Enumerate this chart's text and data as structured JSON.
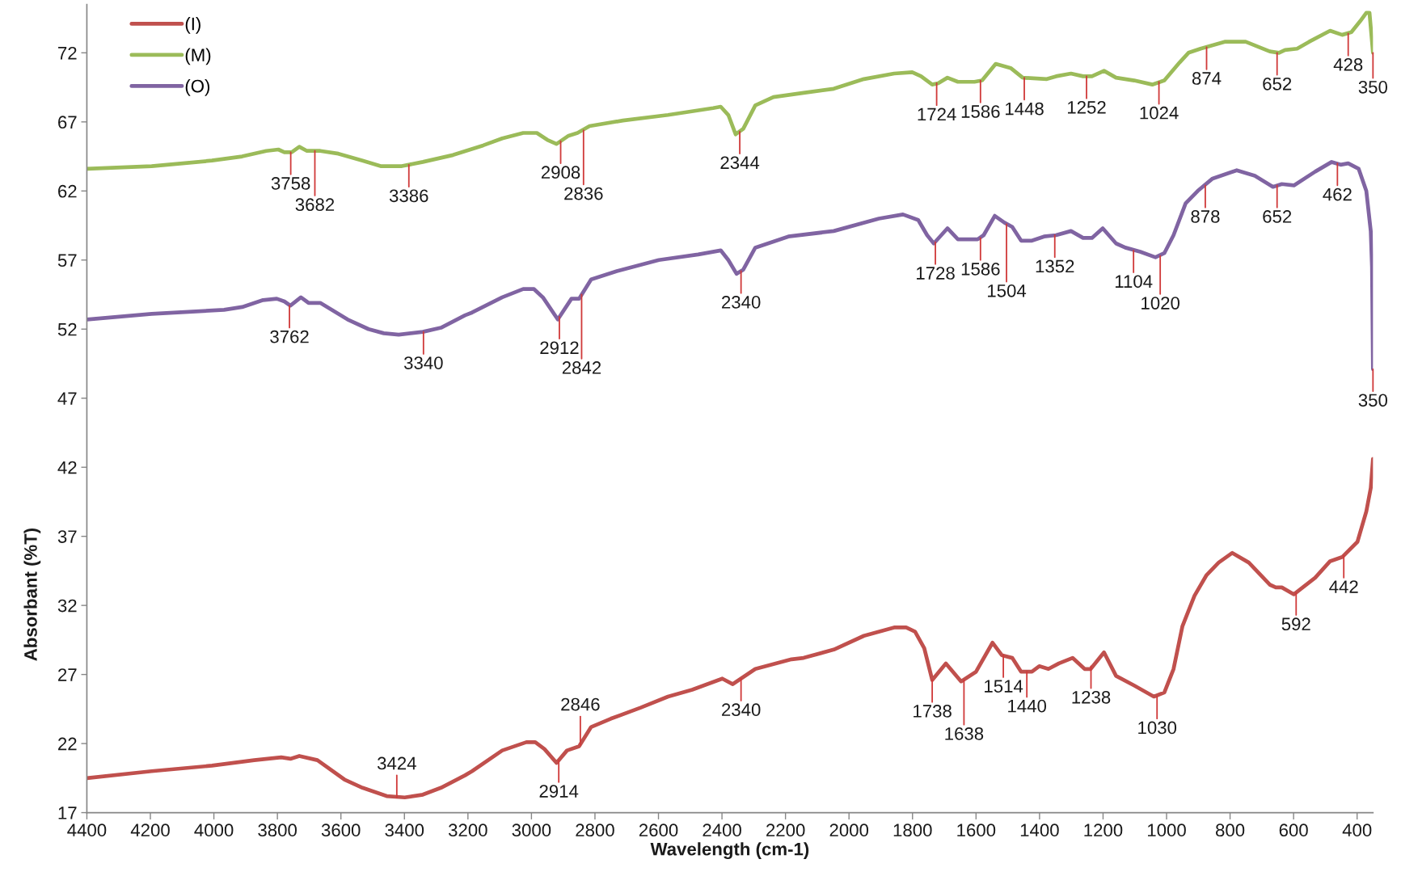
{
  "chart_data": {
    "type": "line",
    "xlabel": "Wavelength (cm-1)",
    "ylabel": "Absorbant (%T)",
    "xlim": [
      4400,
      350
    ],
    "xticks": [
      4400,
      4200,
      4000,
      3800,
      3600,
      3400,
      3200,
      3000,
      2800,
      2600,
      2400,
      2200,
      2000,
      1800,
      1600,
      1400,
      1200,
      1000,
      800,
      600,
      400
    ],
    "ylim": [
      17,
      75.5
    ],
    "yticks": [
      17,
      22,
      27,
      32,
      37,
      42,
      47,
      52,
      57,
      62,
      67,
      72
    ],
    "legend": "top left",
    "series": [
      {
        "name": "(I)",
        "color": "#c0504d",
        "x": [
          4400,
          4196,
          4006,
          3873,
          3788,
          3759,
          3731,
          3674,
          3589,
          3532,
          3456,
          3399,
          3342,
          3285,
          3209,
          3187,
          3092,
          3016,
          2988,
          2959,
          2921,
          2888,
          2850,
          2812,
          2750,
          2656,
          2570,
          2494,
          2399,
          2366,
          2295,
          2181,
          2143,
          2048,
          1953,
          1858,
          1820,
          1792,
          1763,
          1738,
          1695,
          1647,
          1600,
          1548,
          1519,
          1486,
          1458,
          1424,
          1401,
          1372,
          1339,
          1296,
          1258,
          1239,
          1197,
          1159,
          1102,
          1040,
          1007,
          978,
          950,
          912,
          874,
          836,
          793,
          741,
          675,
          656,
          637,
          599,
          532,
          485,
          447,
          399,
          371,
          357,
          350
        ],
        "values": [
          19.5,
          20.0,
          20.4,
          20.8,
          21.0,
          20.9,
          21.1,
          20.8,
          19.4,
          18.8,
          18.2,
          18.1,
          18.3,
          18.8,
          19.7,
          20.0,
          21.5,
          22.1,
          22.1,
          21.6,
          20.6,
          21.5,
          21.8,
          23.2,
          23.8,
          24.6,
          25.4,
          25.9,
          26.7,
          26.3,
          27.4,
          28.1,
          28.2,
          28.8,
          29.8,
          30.4,
          30.4,
          30.1,
          28.9,
          26.6,
          27.8,
          26.5,
          27.2,
          29.3,
          28.4,
          28.2,
          27.2,
          27.2,
          27.6,
          27.4,
          27.8,
          28.2,
          27.4,
          27.4,
          28.6,
          26.9,
          26.2,
          25.4,
          25.7,
          27.4,
          30.5,
          32.7,
          34.2,
          35.1,
          35.8,
          35.1,
          33.5,
          33.3,
          33.3,
          32.8,
          34.0,
          35.2,
          35.5,
          36.6,
          38.8,
          40.5,
          42.6
        ]
      },
      {
        "name": "(M)",
        "color": "#9bbb59",
        "x": [
          4400,
          4196,
          4006,
          3911,
          3835,
          3797,
          3778,
          3755,
          3731,
          3707,
          3665,
          3608,
          3532,
          3475,
          3408,
          3342,
          3247,
          3152,
          3092,
          3026,
          2983,
          2950,
          2921,
          2883,
          2855,
          2817,
          2712,
          2570,
          2428,
          2404,
          2380,
          2357,
          2333,
          2295,
          2238,
          2143,
          2048,
          1953,
          1858,
          1801,
          1773,
          1738,
          1719,
          1690,
          1657,
          1605,
          1581,
          1538,
          1491,
          1453,
          1377,
          1348,
          1301,
          1263,
          1235,
          1197,
          1159,
          1102,
          1045,
          1007,
          959,
          931,
          893,
          817,
          751,
          675,
          646,
          627,
          589,
          551,
          485,
          447,
          418,
          390,
          371,
          361,
          350
        ],
        "values": [
          63.6,
          63.8,
          64.2,
          64.5,
          64.9,
          65.0,
          64.8,
          64.8,
          65.2,
          64.9,
          64.9,
          64.7,
          64.2,
          63.8,
          63.8,
          64.1,
          64.6,
          65.3,
          65.8,
          66.2,
          66.2,
          65.7,
          65.4,
          66.0,
          66.2,
          66.7,
          67.1,
          67.5,
          68.0,
          68.1,
          67.5,
          66.1,
          66.5,
          68.2,
          68.8,
          69.1,
          69.4,
          70.1,
          70.5,
          70.6,
          70.3,
          69.7,
          69.8,
          70.2,
          69.9,
          69.9,
          70.0,
          71.2,
          70.9,
          70.2,
          70.1,
          70.3,
          70.5,
          70.3,
          70.3,
          70.7,
          70.2,
          70.0,
          69.7,
          70.0,
          71.3,
          72.0,
          72.3,
          72.8,
          72.8,
          72.1,
          72.0,
          72.2,
          72.3,
          72.8,
          73.6,
          73.3,
          73.5,
          74.3,
          74.9,
          74.9,
          72.0
        ]
      },
      {
        "name": "(O)",
        "color": "#8064a2",
        "x": [
          4400,
          4196,
          3968,
          3911,
          3845,
          3802,
          3778,
          3759,
          3726,
          3702,
          3665,
          3579,
          3513,
          3465,
          3418,
          3342,
          3285,
          3209,
          3187,
          3092,
          3026,
          2992,
          2964,
          2917,
          2874,
          2850,
          2812,
          2731,
          2599,
          2475,
          2404,
          2380,
          2354,
          2333,
          2295,
          2191,
          2048,
          1906,
          1830,
          1782,
          1754,
          1733,
          1690,
          1657,
          1595,
          1576,
          1541,
          1510,
          1486,
          1458,
          1424,
          1386,
          1348,
          1301,
          1263,
          1235,
          1201,
          1159,
          1130,
          1083,
          1035,
          1007,
          978,
          940,
          902,
          855,
          779,
          722,
          665,
          637,
          599,
          532,
          480,
          452,
          428,
          395,
          371,
          357,
          353,
          350
        ],
        "values": [
          52.7,
          53.1,
          53.4,
          53.6,
          54.1,
          54.2,
          54.0,
          53.7,
          54.3,
          53.9,
          53.9,
          52.7,
          52.0,
          51.7,
          51.6,
          51.8,
          52.1,
          53.0,
          53.2,
          54.3,
          54.9,
          54.9,
          54.3,
          52.7,
          54.2,
          54.2,
          55.6,
          56.2,
          57.0,
          57.4,
          57.7,
          57.0,
          56.0,
          56.3,
          57.9,
          58.7,
          59.1,
          60.0,
          60.3,
          59.9,
          58.8,
          58.2,
          59.3,
          58.5,
          58.5,
          58.8,
          60.2,
          59.7,
          59.4,
          58.4,
          58.4,
          58.7,
          58.8,
          59.1,
          58.6,
          58.6,
          59.3,
          58.2,
          57.9,
          57.6,
          57.2,
          57.5,
          58.8,
          61.1,
          62.0,
          62.9,
          63.5,
          63.1,
          62.3,
          62.5,
          62.4,
          63.4,
          64.1,
          63.9,
          64.0,
          63.6,
          62.0,
          59.1,
          56.5,
          49.1
        ]
      }
    ],
    "annotations": [
      {
        "text": "3758",
        "x": 3758,
        "y": 64.8
      },
      {
        "text": "3682",
        "x": 3682,
        "y": 64.9
      },
      {
        "text": "3386",
        "x": 3386,
        "y": 63.9
      },
      {
        "text": "2908",
        "x": 2908,
        "y": 65.6
      },
      {
        "text": "2836",
        "x": 2836,
        "y": 66.4
      },
      {
        "text": "2344",
        "x": 2344,
        "y": 66.3
      },
      {
        "text": "1724",
        "x": 1724,
        "y": 69.8
      },
      {
        "text": "1586",
        "x": 1586,
        "y": 70.0
      },
      {
        "text": "1448",
        "x": 1448,
        "y": 70.2
      },
      {
        "text": "1252",
        "x": 1252,
        "y": 70.3
      },
      {
        "text": "1024",
        "x": 1024,
        "y": 69.9
      },
      {
        "text": "874",
        "x": 874,
        "y": 72.4
      },
      {
        "text": "652",
        "x": 652,
        "y": 72.0
      },
      {
        "text": "428",
        "x": 428,
        "y": 73.4
      },
      {
        "text": "350",
        "x": 350,
        "y": 72.0
      },
      {
        "text": "3762",
        "x": 3762,
        "y": 53.7
      },
      {
        "text": "3340",
        "x": 3340,
        "y": 51.8
      },
      {
        "text": "2912",
        "x": 2912,
        "y": 52.9
      },
      {
        "text": "2842",
        "x": 2842,
        "y": 54.5
      },
      {
        "text": "2340",
        "x": 2340,
        "y": 56.2
      },
      {
        "text": "1728",
        "x": 1728,
        "y": 58.3
      },
      {
        "text": "1586",
        "x": 1586,
        "y": 58.6
      },
      {
        "text": "1504",
        "x": 1504,
        "y": 59.6
      },
      {
        "text": "1352",
        "x": 1352,
        "y": 58.8
      },
      {
        "text": "1104",
        "x": 1104,
        "y": 57.7
      },
      {
        "text": "1020",
        "x": 1020,
        "y": 57.3
      },
      {
        "text": "878",
        "x": 878,
        "y": 62.4
      },
      {
        "text": "652",
        "x": 652,
        "y": 62.4
      },
      {
        "text": "462",
        "x": 462,
        "y": 64.0
      },
      {
        "text": "350",
        "x": 350,
        "y": 49.1
      },
      {
        "text": "3424",
        "x": 3424,
        "y": 18.1
      },
      {
        "text": "2914",
        "x": 2914,
        "y": 20.8
      },
      {
        "text": "2846",
        "x": 2846,
        "y": 21.9
      },
      {
        "text": "2340",
        "x": 2340,
        "y": 26.7
      },
      {
        "text": "1738",
        "x": 1738,
        "y": 26.6
      },
      {
        "text": "1638",
        "x": 1638,
        "y": 26.6
      },
      {
        "text": "1514",
        "x": 1514,
        "y": 28.4
      },
      {
        "text": "1440",
        "x": 1440,
        "y": 27.2
      },
      {
        "text": "1238",
        "x": 1238,
        "y": 27.6
      },
      {
        "text": "1030",
        "x": 1030,
        "y": 25.4
      },
      {
        "text": "592",
        "x": 592,
        "y": 32.9
      },
      {
        "text": "442",
        "x": 442,
        "y": 35.6
      }
    ]
  }
}
